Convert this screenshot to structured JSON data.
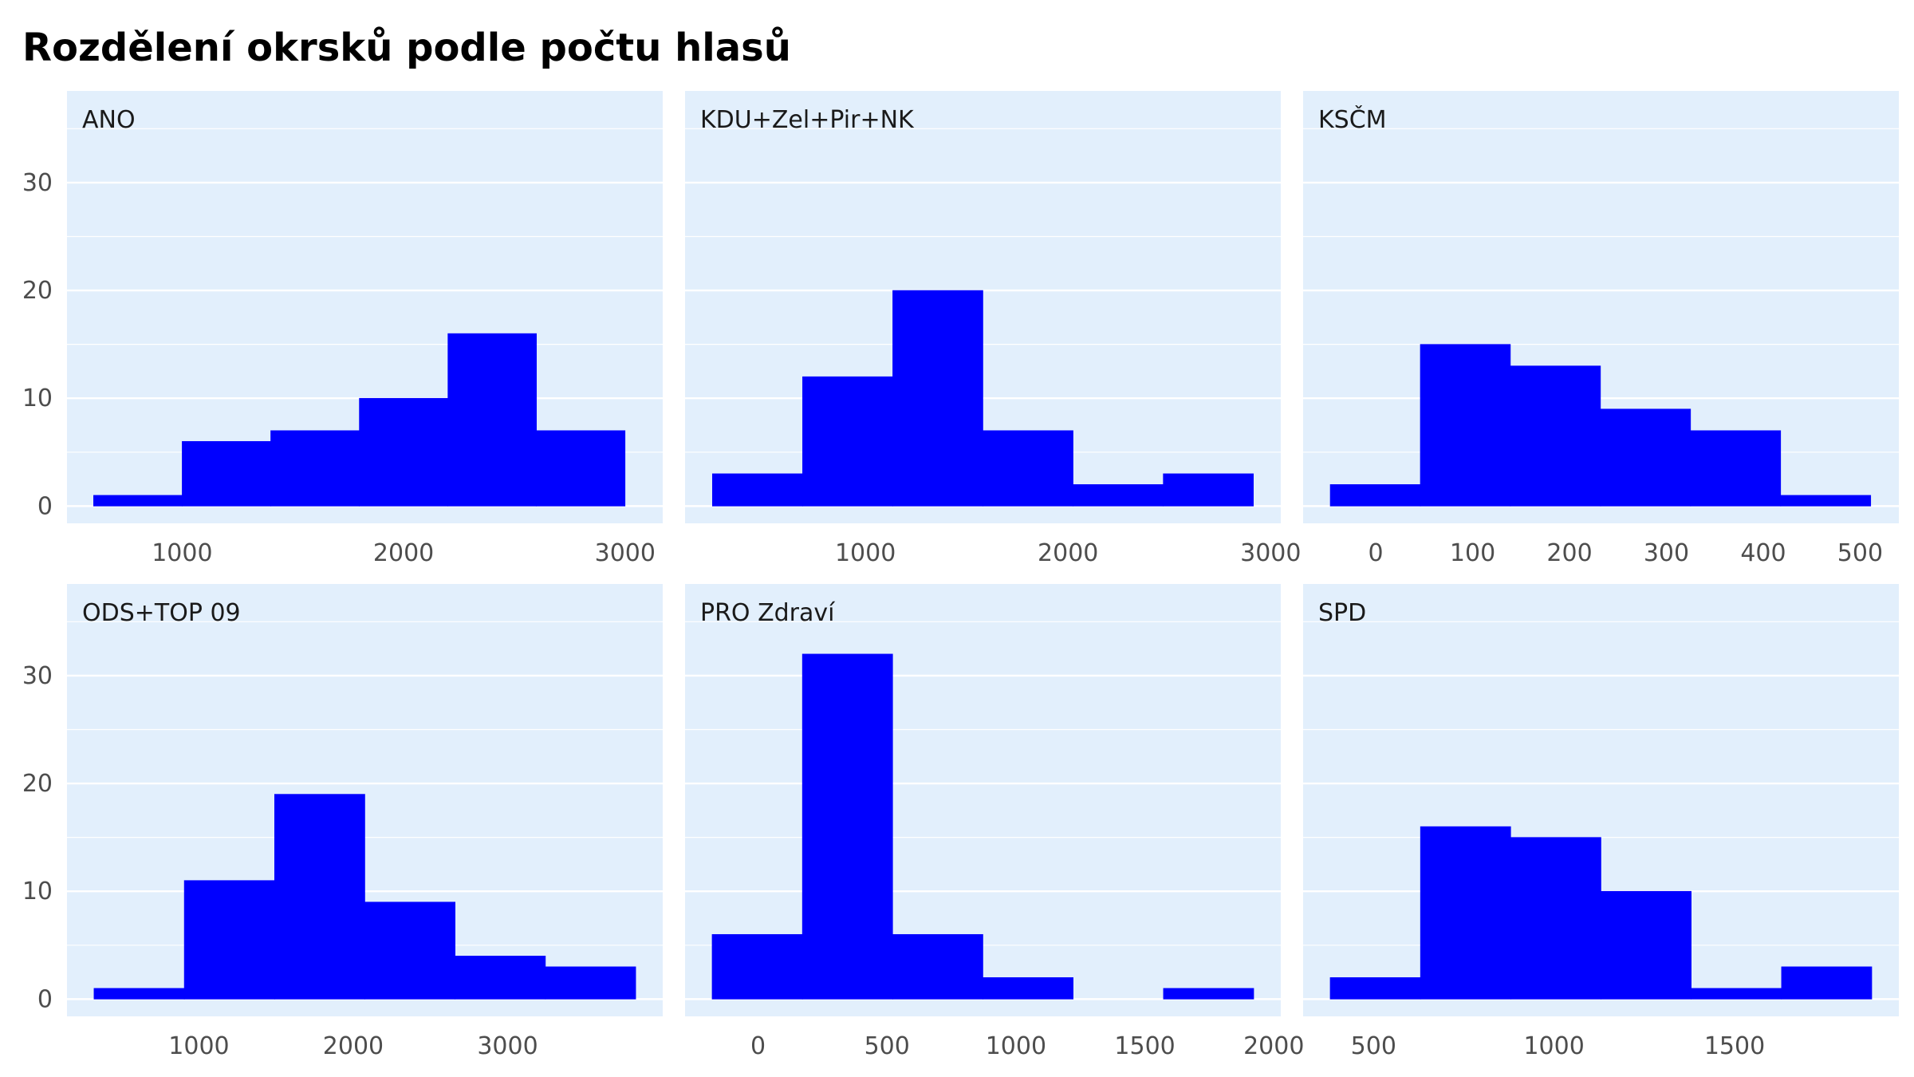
{
  "title": "Rozdělení okrsků podle počtu hlasů",
  "colors": {
    "bar": "#0000ff",
    "panel": "#e2effc",
    "grid": "#ffffff",
    "background": "#ffffff"
  },
  "chart_data": [
    {
      "type": "bar",
      "facet": "ANO",
      "bins": [
        [
          600,
          1000
        ],
        [
          1000,
          1400
        ],
        [
          1400,
          1800
        ],
        [
          1800,
          2200
        ],
        [
          2200,
          2600
        ],
        [
          2600,
          3000
        ]
      ],
      "values": [
        1,
        6,
        7,
        10,
        16,
        7
      ],
      "xlim": [
        480,
        3170
      ],
      "xticks": [
        1000,
        2000,
        3000
      ],
      "xtick_labels": [
        "1000",
        "2000",
        "3000"
      ],
      "ylim": [
        -1.6,
        38.5
      ],
      "yticks": [
        0,
        10,
        20,
        30
      ],
      "ytick_labels": [
        "0",
        "10",
        "20",
        "30"
      ]
    },
    {
      "type": "bar",
      "facet": "KDU+Zel+Pir+NK",
      "bins": [
        [
          245,
          690
        ],
        [
          690,
          1135
        ],
        [
          1135,
          1580
        ],
        [
          1580,
          2025
        ],
        [
          2025,
          2470
        ],
        [
          2470,
          2915
        ]
      ],
      "values": [
        3,
        12,
        20,
        7,
        2,
        3
      ],
      "xlim": [
        110,
        3050
      ],
      "xticks": [
        1000,
        2000,
        3000
      ],
      "xtick_labels": [
        "1000",
        "2000",
        "3000"
      ],
      "ylim": [
        -1.6,
        38.5
      ],
      "yticks": [
        0,
        10,
        20,
        30
      ],
      "ytick_labels": [
        "0",
        "10",
        "20",
        "30"
      ]
    },
    {
      "type": "bar",
      "facet": "KSČM",
      "bins": [
        [
          -47,
          46
        ],
        [
          46,
          139
        ],
        [
          139,
          232
        ],
        [
          232,
          325
        ],
        [
          325,
          418
        ],
        [
          418,
          511
        ]
      ],
      "values": [
        2,
        15,
        13,
        9,
        7,
        1
      ],
      "xlim": [
        -75,
        540
      ],
      "xticks": [
        0,
        100,
        200,
        300,
        400,
        500
      ],
      "xtick_labels": [
        "0",
        "100",
        "200",
        "300",
        "400",
        "500"
      ],
      "ylim": [
        -1.6,
        38.5
      ],
      "yticks": [
        0,
        10,
        20,
        30
      ],
      "ytick_labels": [
        "0",
        "10",
        "20",
        "30"
      ]
    },
    {
      "type": "bar",
      "facet": "ODS+TOP 09",
      "bins": [
        [
          320,
          905
        ],
        [
          905,
          1490
        ],
        [
          1490,
          2075
        ],
        [
          2075,
          2660
        ],
        [
          2660,
          3245
        ],
        [
          3245,
          3830
        ]
      ],
      "values": [
        1,
        11,
        19,
        9,
        4,
        3
      ],
      "xlim": [
        145,
        4005
      ],
      "xticks": [
        1000,
        2000,
        3000
      ],
      "xtick_labels": [
        "1000",
        "2000",
        "3000"
      ],
      "ylim": [
        -1.6,
        38.5
      ],
      "yticks": [
        0,
        10,
        20,
        30
      ],
      "ytick_labels": [
        "0",
        "10",
        "20",
        "30"
      ]
    },
    {
      "type": "bar",
      "facet": "PRO Zdraví",
      "bins": [
        [
          -178,
          172
        ],
        [
          172,
          522
        ],
        [
          522,
          872
        ],
        [
          872,
          1222
        ],
        [
          1222,
          1572
        ],
        [
          1572,
          1922
        ]
      ],
      "values": [
        6,
        32,
        6,
        2,
        0,
        1
      ],
      "xlim": [
        -283,
        2027
      ],
      "xticks": [
        0,
        500,
        1000,
        1500,
        2000
      ],
      "xtick_labels": [
        "0",
        "500",
        "1000",
        "1500",
        "2000"
      ],
      "ylim": [
        -1.6,
        38.5
      ],
      "yticks": [
        0,
        10,
        20,
        30
      ],
      "ytick_labels": [
        "0",
        "10",
        "20",
        "30"
      ]
    },
    {
      "type": "bar",
      "facet": "SPD",
      "bins": [
        [
          380,
          630
        ],
        [
          630,
          880
        ],
        [
          880,
          1130
        ],
        [
          1130,
          1380
        ],
        [
          1380,
          1630
        ],
        [
          1630,
          1880
        ]
      ],
      "values": [
        2,
        16,
        15,
        10,
        1,
        3
      ],
      "xlim": [
        305,
        1955
      ],
      "xticks": [
        500,
        1000,
        1500
      ],
      "xtick_labels": [
        "500",
        "1000",
        "1500"
      ],
      "ylim": [
        -1.6,
        38.5
      ],
      "yticks": [
        0,
        10,
        20,
        30
      ],
      "ytick_labels": [
        "0",
        "10",
        "20",
        "30"
      ]
    }
  ]
}
